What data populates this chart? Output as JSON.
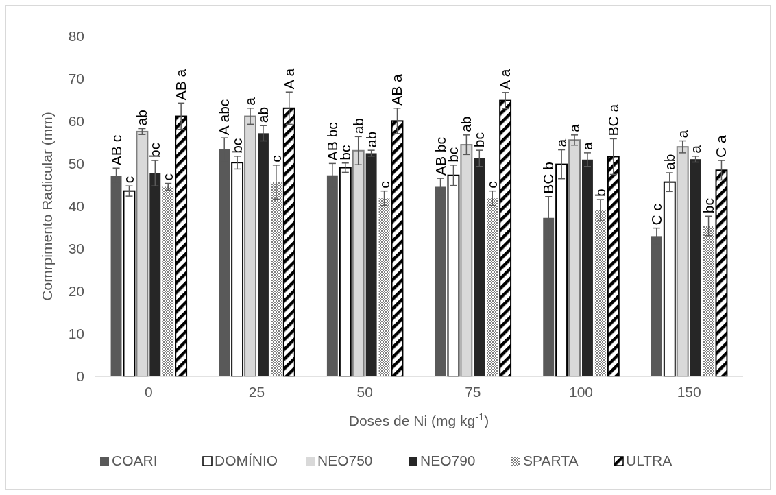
{
  "chart_data": {
    "type": "bar",
    "xlabel": "Doses de Ni (mg kg$^{-1}$)",
    "ylabel": "Comrpimento Radicular (mm)",
    "categories": [
      "0",
      "25",
      "50",
      "75",
      "100",
      "150"
    ],
    "ylim": [
      0,
      80
    ],
    "yticks": [
      0,
      10,
      20,
      30,
      40,
      50,
      60,
      70,
      80
    ],
    "grid": false,
    "legend": "bottom",
    "series": [
      {
        "name": "COARI",
        "color": "#595959",
        "values": [
          47.2,
          53.4,
          47.3,
          44.6,
          37.3,
          33.0
        ],
        "errors": [
          1.8,
          2.7,
          2.8,
          2.0,
          5.0,
          1.9
        ],
        "value_labels": [
          "AB c",
          "A abc",
          "AB bc",
          "AB bc",
          "BC b",
          "C c"
        ]
      },
      {
        "name": "DOMÍNIO",
        "color": "#ffffff",
        "values": [
          43.6,
          50.3,
          49.1,
          47.3,
          49.9,
          45.7
        ],
        "errors": [
          1.2,
          1.5,
          1.1,
          2.4,
          3.4,
          2.2
        ],
        "value_labels": [
          "c",
          "bc",
          "bc",
          "bc",
          "a",
          "ab"
        ]
      },
      {
        "name": "NEO750",
        "color": "#d9d9d9",
        "values": [
          57.6,
          61.2,
          53.1,
          54.5,
          55.6,
          54.0
        ],
        "errors": [
          0.7,
          1.9,
          3.3,
          2.3,
          1.2,
          1.4
        ],
        "value_labels": [
          "ab",
          "a",
          "ab",
          "ab",
          "a",
          "a"
        ]
      },
      {
        "name": "NEO790",
        "color": "#262626",
        "values": [
          47.8,
          57.2,
          52.5,
          51.3,
          51.0,
          51.1
        ],
        "errors": [
          3.0,
          1.8,
          0.7,
          1.9,
          1.6,
          0.7
        ],
        "value_labels": [
          "bc",
          "ab",
          "ab",
          "bc",
          "a",
          "a"
        ]
      },
      {
        "name": "SPARTA",
        "color": "#7f7f7f",
        "values": [
          44.6,
          45.7,
          41.9,
          41.9,
          39.1,
          35.4
        ],
        "errors": [
          0.8,
          4.0,
          1.7,
          1.7,
          2.5,
          2.3
        ],
        "value_labels": [
          "c",
          "c",
          "c",
          "c",
          "b",
          "bc"
        ]
      },
      {
        "name": "ULTRA",
        "color": "#000000",
        "values": [
          61.2,
          63.1,
          60.1,
          64.9,
          51.7,
          48.5
        ],
        "errors": [
          3.1,
          3.8,
          3.0,
          1.9,
          4.2,
          2.3
        ],
        "value_labels": [
          "AB a",
          "A a",
          "AB a",
          "A a",
          "BC a",
          "C a"
        ]
      }
    ]
  }
}
